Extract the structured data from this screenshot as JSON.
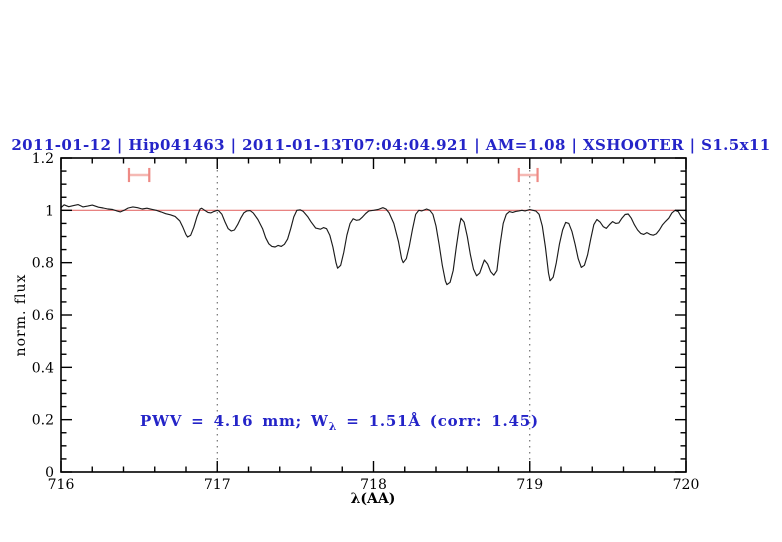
{
  "chart_data": {
    "type": "line",
    "title": "2011-01-12 | Hip041463 | 2011-01-13T07:04:04.921 | AM=1.08 | XSHOOTER | S1.5x11",
    "xlabel": "λ(AA)",
    "ylabel": "norm. flux",
    "annotation": "PWV = 4.16 mm; Wλ = 1.51Å (corr: 1.45)",
    "annotation_parts": {
      "prefix": "PWV = 4.16 mm; W",
      "sub": "λ",
      "suffix": " = 1.51Å (corr: 1.45)"
    },
    "xlim": [
      716,
      720
    ],
    "ylim": [
      0,
      1.2
    ],
    "x_major_ticks": [
      716,
      717,
      718,
      719,
      720
    ],
    "x_tick_labels": [
      "716",
      "717",
      "718",
      "719",
      "720"
    ],
    "x_minor_step": 0.2,
    "y_major_ticks": [
      0,
      0.2,
      0.4,
      0.6,
      0.8,
      1,
      1.2
    ],
    "y_tick_labels": [
      "0",
      "0.2",
      "0.4",
      "0.6",
      "0.8",
      "1",
      "1.2"
    ],
    "y_minor_step": 0.05,
    "grid": "off",
    "dotted_vlines": [
      717,
      719
    ],
    "reference_line_y": 1.0,
    "colors": {
      "text_blue": "#2424c8",
      "reference_red": "#e4716f",
      "marker_bar_pink": "#f5b9b4",
      "marker_cap_red": "#ee8a85",
      "spectrum_black": "#1c1c1c"
    },
    "range_markers": [
      {
        "x_center": 716.5,
        "x_half_width": 0.065,
        "y": 1.135,
        "cap_half_height": 0.027
      },
      {
        "x_center": 718.99,
        "x_half_width": 0.06,
        "y": 1.135,
        "cap_half_height": 0.027
      }
    ],
    "series": [
      {
        "name": "telluric spectrum",
        "color": "#1c1c1c",
        "points": [
          [
            716.0,
            1.01
          ],
          [
            716.02,
            1.021
          ],
          [
            716.05,
            1.014
          ],
          [
            716.08,
            1.018
          ],
          [
            716.11,
            1.022
          ],
          [
            716.14,
            1.013
          ],
          [
            716.17,
            1.016
          ],
          [
            716.2,
            1.02
          ],
          [
            716.24,
            1.012
          ],
          [
            716.27,
            1.009
          ],
          [
            716.3,
            1.005
          ],
          [
            716.33,
            1.003
          ],
          [
            716.36,
            0.997
          ],
          [
            716.38,
            0.994
          ],
          [
            716.41,
            1.002
          ],
          [
            716.43,
            1.009
          ],
          [
            716.46,
            1.013
          ],
          [
            716.49,
            1.01
          ],
          [
            716.52,
            1.005
          ],
          [
            716.55,
            1.008
          ],
          [
            716.58,
            1.004
          ],
          [
            716.61,
            1.0
          ],
          [
            716.64,
            0.994
          ],
          [
            716.67,
            0.987
          ],
          [
            716.7,
            0.983
          ],
          [
            716.73,
            0.977
          ],
          [
            716.76,
            0.96
          ],
          [
            716.78,
            0.935
          ],
          [
            716.8,
            0.907
          ],
          [
            716.81,
            0.898
          ],
          [
            716.83,
            0.905
          ],
          [
            716.85,
            0.935
          ],
          [
            716.87,
            0.975
          ],
          [
            716.89,
            1.005
          ],
          [
            716.9,
            1.008
          ],
          [
            716.92,
            1.0
          ],
          [
            716.94,
            0.992
          ],
          [
            716.96,
            0.99
          ],
          [
            716.98,
            0.996
          ],
          [
            717.0,
            1.0
          ],
          [
            717.01,
            0.998
          ],
          [
            717.03,
            0.985
          ],
          [
            717.05,
            0.955
          ],
          [
            717.07,
            0.93
          ],
          [
            717.09,
            0.921
          ],
          [
            717.11,
            0.925
          ],
          [
            717.13,
            0.945
          ],
          [
            717.15,
            0.97
          ],
          [
            717.17,
            0.99
          ],
          [
            717.19,
            0.998
          ],
          [
            717.21,
            0.999
          ],
          [
            717.23,
            0.99
          ],
          [
            717.26,
            0.965
          ],
          [
            717.29,
            0.93
          ],
          [
            717.31,
            0.895
          ],
          [
            717.33,
            0.872
          ],
          [
            717.35,
            0.862
          ],
          [
            717.37,
            0.86
          ],
          [
            717.39,
            0.866
          ],
          [
            717.41,
            0.862
          ],
          [
            717.43,
            0.87
          ],
          [
            717.45,
            0.89
          ],
          [
            717.47,
            0.93
          ],
          [
            717.49,
            0.975
          ],
          [
            717.51,
            1.0
          ],
          [
            717.53,
            1.002
          ],
          [
            717.55,
            0.996
          ],
          [
            717.58,
            0.975
          ],
          [
            717.6,
            0.956
          ],
          [
            717.63,
            0.932
          ],
          [
            717.66,
            0.928
          ],
          [
            717.68,
            0.934
          ],
          [
            717.7,
            0.93
          ],
          [
            717.72,
            0.905
          ],
          [
            717.74,
            0.86
          ],
          [
            717.76,
            0.8
          ],
          [
            717.77,
            0.779
          ],
          [
            717.79,
            0.79
          ],
          [
            717.81,
            0.84
          ],
          [
            717.83,
            0.905
          ],
          [
            717.85,
            0.95
          ],
          [
            717.87,
            0.968
          ],
          [
            717.89,
            0.962
          ],
          [
            717.91,
            0.964
          ],
          [
            717.93,
            0.975
          ],
          [
            717.95,
            0.988
          ],
          [
            717.97,
            0.998
          ],
          [
            718.0,
            1.0
          ],
          [
            718.03,
            1.003
          ],
          [
            718.06,
            1.01
          ],
          [
            718.08,
            1.005
          ],
          [
            718.1,
            0.99
          ],
          [
            718.13,
            0.95
          ],
          [
            718.16,
            0.88
          ],
          [
            718.18,
            0.815
          ],
          [
            718.19,
            0.8
          ],
          [
            718.21,
            0.815
          ],
          [
            718.23,
            0.865
          ],
          [
            718.25,
            0.93
          ],
          [
            718.27,
            0.985
          ],
          [
            718.29,
            1.0
          ],
          [
            718.31,
            0.998
          ],
          [
            718.34,
            1.005
          ],
          [
            718.36,
            1.0
          ],
          [
            718.38,
            0.985
          ],
          [
            718.4,
            0.94
          ],
          [
            718.42,
            0.87
          ],
          [
            718.44,
            0.79
          ],
          [
            718.46,
            0.73
          ],
          [
            718.47,
            0.716
          ],
          [
            718.49,
            0.725
          ],
          [
            718.51,
            0.77
          ],
          [
            718.53,
            0.86
          ],
          [
            718.55,
            0.94
          ],
          [
            718.56,
            0.97
          ],
          [
            718.58,
            0.955
          ],
          [
            718.6,
            0.9
          ],
          [
            718.62,
            0.83
          ],
          [
            718.64,
            0.775
          ],
          [
            718.66,
            0.75
          ],
          [
            718.68,
            0.76
          ],
          [
            718.7,
            0.795
          ],
          [
            718.71,
            0.81
          ],
          [
            718.73,
            0.795
          ],
          [
            718.75,
            0.765
          ],
          [
            718.77,
            0.752
          ],
          [
            718.79,
            0.77
          ],
          [
            718.81,
            0.87
          ],
          [
            718.83,
            0.95
          ],
          [
            718.85,
            0.985
          ],
          [
            718.87,
            0.995
          ],
          [
            718.89,
            0.992
          ],
          [
            718.91,
            0.996
          ],
          [
            718.93,
            0.998
          ],
          [
            718.95,
            1.0
          ],
          [
            718.97,
            0.998
          ],
          [
            719.0,
            1.003
          ],
          [
            719.02,
            1.0
          ],
          [
            719.04,
            0.997
          ],
          [
            719.06,
            0.985
          ],
          [
            719.08,
            0.94
          ],
          [
            719.1,
            0.86
          ],
          [
            719.12,
            0.76
          ],
          [
            719.13,
            0.731
          ],
          [
            719.15,
            0.745
          ],
          [
            719.17,
            0.8
          ],
          [
            719.19,
            0.87
          ],
          [
            719.21,
            0.925
          ],
          [
            719.23,
            0.954
          ],
          [
            719.25,
            0.95
          ],
          [
            719.27,
            0.92
          ],
          [
            719.29,
            0.87
          ],
          [
            719.31,
            0.815
          ],
          [
            719.33,
            0.782
          ],
          [
            719.35,
            0.79
          ],
          [
            719.37,
            0.83
          ],
          [
            719.39,
            0.89
          ],
          [
            719.41,
            0.945
          ],
          [
            719.43,
            0.965
          ],
          [
            719.45,
            0.955
          ],
          [
            719.47,
            0.938
          ],
          [
            719.49,
            0.931
          ],
          [
            719.51,
            0.945
          ],
          [
            719.53,
            0.957
          ],
          [
            719.55,
            0.95
          ],
          [
            719.57,
            0.952
          ],
          [
            719.59,
            0.97
          ],
          [
            719.61,
            0.984
          ],
          [
            719.63,
            0.986
          ],
          [
            719.65,
            0.97
          ],
          [
            719.67,
            0.945
          ],
          [
            719.69,
            0.925
          ],
          [
            719.71,
            0.912
          ],
          [
            719.73,
            0.908
          ],
          [
            719.75,
            0.915
          ],
          [
            719.77,
            0.908
          ],
          [
            719.79,
            0.905
          ],
          [
            719.81,
            0.91
          ],
          [
            719.83,
            0.925
          ],
          [
            719.85,
            0.945
          ],
          [
            719.87,
            0.958
          ],
          [
            719.89,
            0.97
          ],
          [
            719.91,
            0.99
          ],
          [
            719.93,
            1.0
          ],
          [
            719.95,
            0.995
          ],
          [
            719.97,
            0.975
          ],
          [
            720.0,
            0.955
          ]
        ]
      }
    ]
  }
}
